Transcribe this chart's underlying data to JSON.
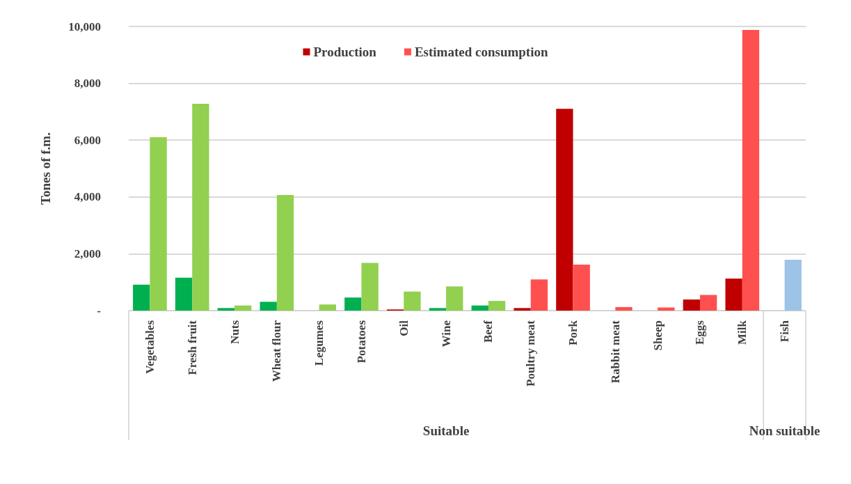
{
  "chart_data": {
    "type": "bar",
    "ylabel": "Tones of f.m.",
    "categories": [
      "Vegetables",
      "Fresh fruit",
      "Nuts",
      "Wheat flour",
      "Legumes",
      "Potatoes",
      "Oil",
      "Wine",
      "Beef",
      "Poultry meat",
      "Pork",
      "Rabbit meat",
      "Sheep",
      "Eggs",
      "Milk",
      "Fish"
    ],
    "series": [
      {
        "name": "Production",
        "color": "#c00000",
        "values": [
          910,
          1160,
          90,
          310,
          0,
          460,
          40,
          90,
          180,
          90,
          7100,
          0,
          0,
          390,
          1130,
          null
        ],
        "colors": [
          "#00b050",
          "#00b050",
          "#00b050",
          "#00b050",
          "#00b050",
          "#00b050",
          "#c00000",
          "#00b050",
          "#00b050",
          "#c00000",
          "#c00000",
          "#c00000",
          "#c00000",
          "#c00000",
          "#c00000",
          "#c00000"
        ]
      },
      {
        "name": "Estimated consumption",
        "color": "#ff5050",
        "values": [
          6100,
          7280,
          180,
          4070,
          215,
          1680,
          670,
          850,
          340,
          1095,
          1620,
          125,
          110,
          550,
          9880,
          1790
        ],
        "colors": [
          "#92d050",
          "#92d050",
          "#92d050",
          "#92d050",
          "#92d050",
          "#92d050",
          "#92d050",
          "#92d050",
          "#92d050",
          "#ff5050",
          "#ff5050",
          "#ff5050",
          "#ff5050",
          "#ff5050",
          "#ff5050",
          "#9dc3e6"
        ]
      }
    ],
    "ylim": [
      0,
      10000
    ],
    "yticks": [
      {
        "value": 0,
        "label": "-"
      },
      {
        "value": 2000,
        "label": "2,000"
      },
      {
        "value": 4000,
        "label": "4,000"
      },
      {
        "value": 6000,
        "label": "6,000"
      },
      {
        "value": 8000,
        "label": "8,000"
      },
      {
        "value": 10000,
        "label": "10,000"
      }
    ],
    "grid": "y",
    "legend": "top",
    "annotations": [
      "Suitable",
      "Non suitable"
    ]
  }
}
